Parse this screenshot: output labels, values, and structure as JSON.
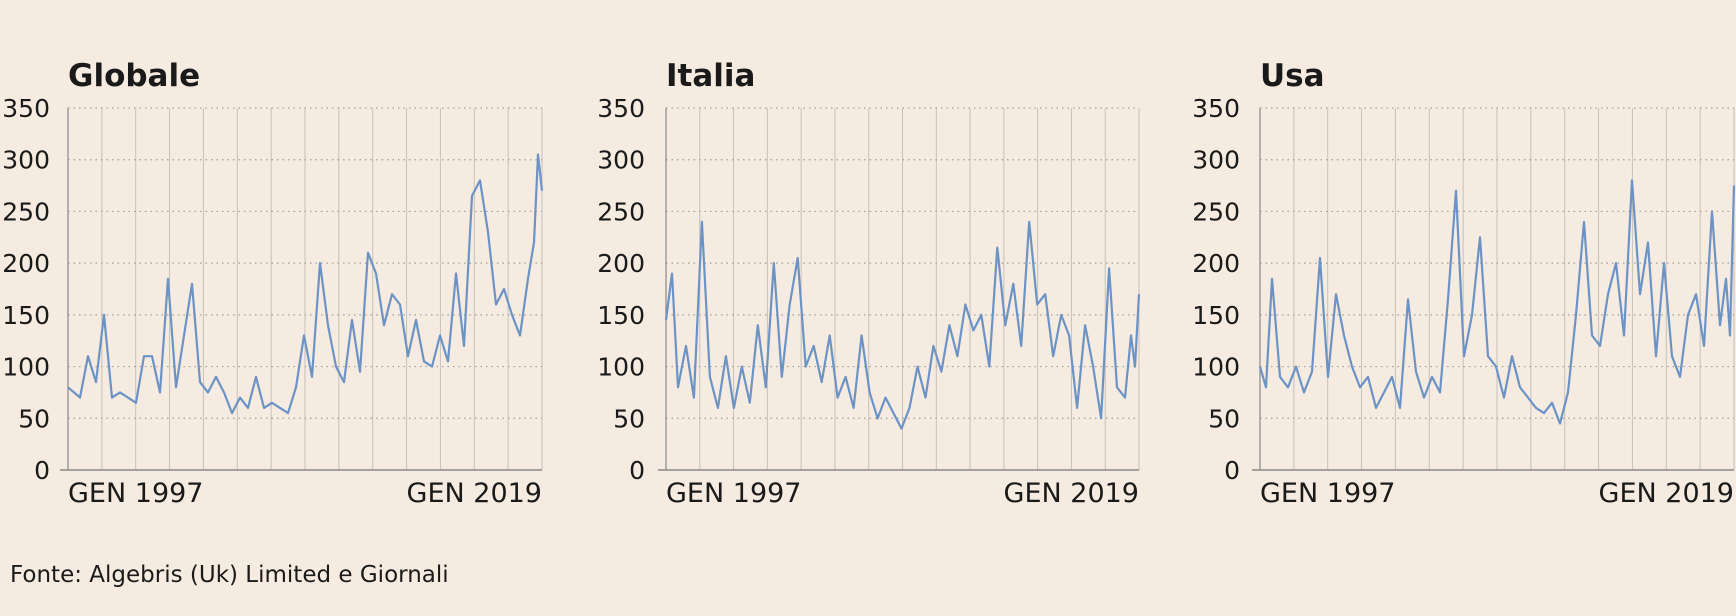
{
  "source_note": "Fonte: Algebris (Uk) Limited e Giornali",
  "colors": {
    "background": "#f5ebe0",
    "line": "#6b93c6",
    "grid": "#a0a0a0",
    "axis": "#888888",
    "text": "#1a1a1a"
  },
  "chart_data": [
    {
      "type": "line",
      "title": "Globale",
      "xlabel": "",
      "ylabel": "",
      "ylim": [
        0,
        350
      ],
      "yticks": [
        0,
        50,
        100,
        150,
        200,
        250,
        300,
        350
      ],
      "xticks": [
        "GEN 1997",
        "GEN 2019"
      ],
      "xtick_positions": [
        1997,
        2019
      ],
      "xlim": [
        1997,
        2020.7
      ],
      "grid": true,
      "series": [
        {
          "name": "Globale",
          "x": [
            1997,
            1997.3,
            1997.6,
            1998,
            1998.4,
            1998.8,
            1999.2,
            1999.6,
            2000,
            2000.4,
            2000.8,
            2001.2,
            2001.6,
            2002,
            2002.4,
            2002.8,
            2003.2,
            2003.6,
            2004,
            2004.4,
            2004.8,
            2005.2,
            2005.6,
            2006,
            2006.4,
            2006.8,
            2007.2,
            2007.6,
            2008,
            2008.4,
            2008.8,
            2009.2,
            2009.6,
            2010,
            2010.4,
            2010.8,
            2011.2,
            2011.6,
            2012,
            2012.4,
            2012.8,
            2013.2,
            2013.6,
            2014,
            2014.4,
            2014.8,
            2015.2,
            2015.6,
            2016,
            2016.4,
            2016.8,
            2017.2,
            2017.6,
            2018,
            2018.4,
            2018.8,
            2019.2,
            2019.6,
            2020,
            2020.3,
            2020.5,
            2020.7
          ],
          "values": [
            80,
            75,
            70,
            110,
            85,
            150,
            70,
            75,
            70,
            65,
            110,
            110,
            75,
            185,
            80,
            130,
            180,
            85,
            75,
            90,
            75,
            55,
            70,
            60,
            90,
            60,
            65,
            60,
            55,
            80,
            130,
            90,
            200,
            140,
            100,
            85,
            145,
            95,
            210,
            190,
            140,
            170,
            160,
            110,
            145,
            105,
            100,
            130,
            105,
            190,
            120,
            265,
            280,
            230,
            160,
            175,
            150,
            130,
            185,
            220,
            305,
            270
          ]
        }
      ]
    },
    {
      "type": "line",
      "title": "Italia",
      "xlabel": "",
      "ylabel": "",
      "ylim": [
        0,
        350
      ],
      "yticks": [
        0,
        50,
        100,
        150,
        200,
        250,
        300,
        350
      ],
      "xticks": [
        "GEN 1997",
        "GEN 2019"
      ],
      "xtick_positions": [
        1997,
        2019
      ],
      "xlim": [
        1997,
        2020.7
      ],
      "grid": true,
      "series": [
        {
          "name": "Italia",
          "x": [
            1997,
            1997.3,
            1997.6,
            1998,
            1998.4,
            1998.8,
            1999.2,
            1999.6,
            2000,
            2000.4,
            2000.8,
            2001.2,
            2001.6,
            2002,
            2002.4,
            2002.8,
            2003.2,
            2003.6,
            2004,
            2004.4,
            2004.8,
            2005.2,
            2005.6,
            2006,
            2006.4,
            2006.8,
            2007.2,
            2007.6,
            2008,
            2008.4,
            2008.8,
            2009.2,
            2009.6,
            2010,
            2010.4,
            2010.8,
            2011.2,
            2011.6,
            2012,
            2012.4,
            2012.8,
            2013.2,
            2013.6,
            2014,
            2014.4,
            2014.8,
            2015.2,
            2015.6,
            2016,
            2016.4,
            2016.8,
            2017.2,
            2017.6,
            2018,
            2018.4,
            2018.8,
            2019.2,
            2019.6,
            2020,
            2020.3,
            2020.5,
            2020.7
          ],
          "values": [
            145,
            190,
            80,
            120,
            70,
            240,
            90,
            60,
            110,
            60,
            100,
            65,
            140,
            80,
            200,
            90,
            160,
            205,
            100,
            120,
            85,
            130,
            70,
            90,
            60,
            130,
            75,
            50,
            70,
            55,
            40,
            60,
            100,
            70,
            120,
            95,
            140,
            110,
            160,
            135,
            150,
            100,
            215,
            140,
            180,
            120,
            240,
            160,
            170,
            110,
            150,
            130,
            60,
            140,
            100,
            50,
            195,
            80,
            70,
            130,
            100,
            170
          ]
        }
      ]
    },
    {
      "type": "line",
      "title": "Usa",
      "xlabel": "",
      "ylabel": "",
      "ylim": [
        0,
        350
      ],
      "yticks": [
        0,
        50,
        100,
        150,
        200,
        250,
        300,
        350
      ],
      "xticks": [
        "GEN 1997",
        "GEN 2019"
      ],
      "xtick_positions": [
        1997,
        2019
      ],
      "xlim": [
        1997,
        2020.7
      ],
      "grid": true,
      "series": [
        {
          "name": "Usa",
          "x": [
            1997,
            1997.3,
            1997.6,
            1998,
            1998.4,
            1998.8,
            1999.2,
            1999.6,
            2000,
            2000.4,
            2000.8,
            2001.2,
            2001.6,
            2002,
            2002.4,
            2002.8,
            2003.2,
            2003.6,
            2004,
            2004.4,
            2004.8,
            2005.2,
            2005.6,
            2006,
            2006.4,
            2006.8,
            2007.2,
            2007.6,
            2008,
            2008.4,
            2008.8,
            2009.2,
            2009.6,
            2010,
            2010.4,
            2010.8,
            2011.2,
            2011.6,
            2012,
            2012.4,
            2012.8,
            2013.2,
            2013.6,
            2014,
            2014.4,
            2014.8,
            2015.2,
            2015.6,
            2016,
            2016.4,
            2016.8,
            2017.2,
            2017.6,
            2018,
            2018.4,
            2018.8,
            2019.2,
            2019.6,
            2020,
            2020.3,
            2020.5,
            2020.7
          ],
          "values": [
            100,
            80,
            185,
            90,
            80,
            100,
            75,
            95,
            205,
            90,
            170,
            130,
            100,
            80,
            90,
            60,
            75,
            90,
            60,
            165,
            95,
            70,
            90,
            75,
            165,
            270,
            110,
            150,
            225,
            110,
            100,
            70,
            110,
            80,
            70,
            60,
            55,
            65,
            45,
            75,
            150,
            240,
            130,
            120,
            170,
            200,
            130,
            280,
            170,
            220,
            110,
            200,
            110,
            90,
            150,
            170,
            120,
            250,
            140,
            185,
            130,
            275
          ]
        }
      ]
    }
  ]
}
